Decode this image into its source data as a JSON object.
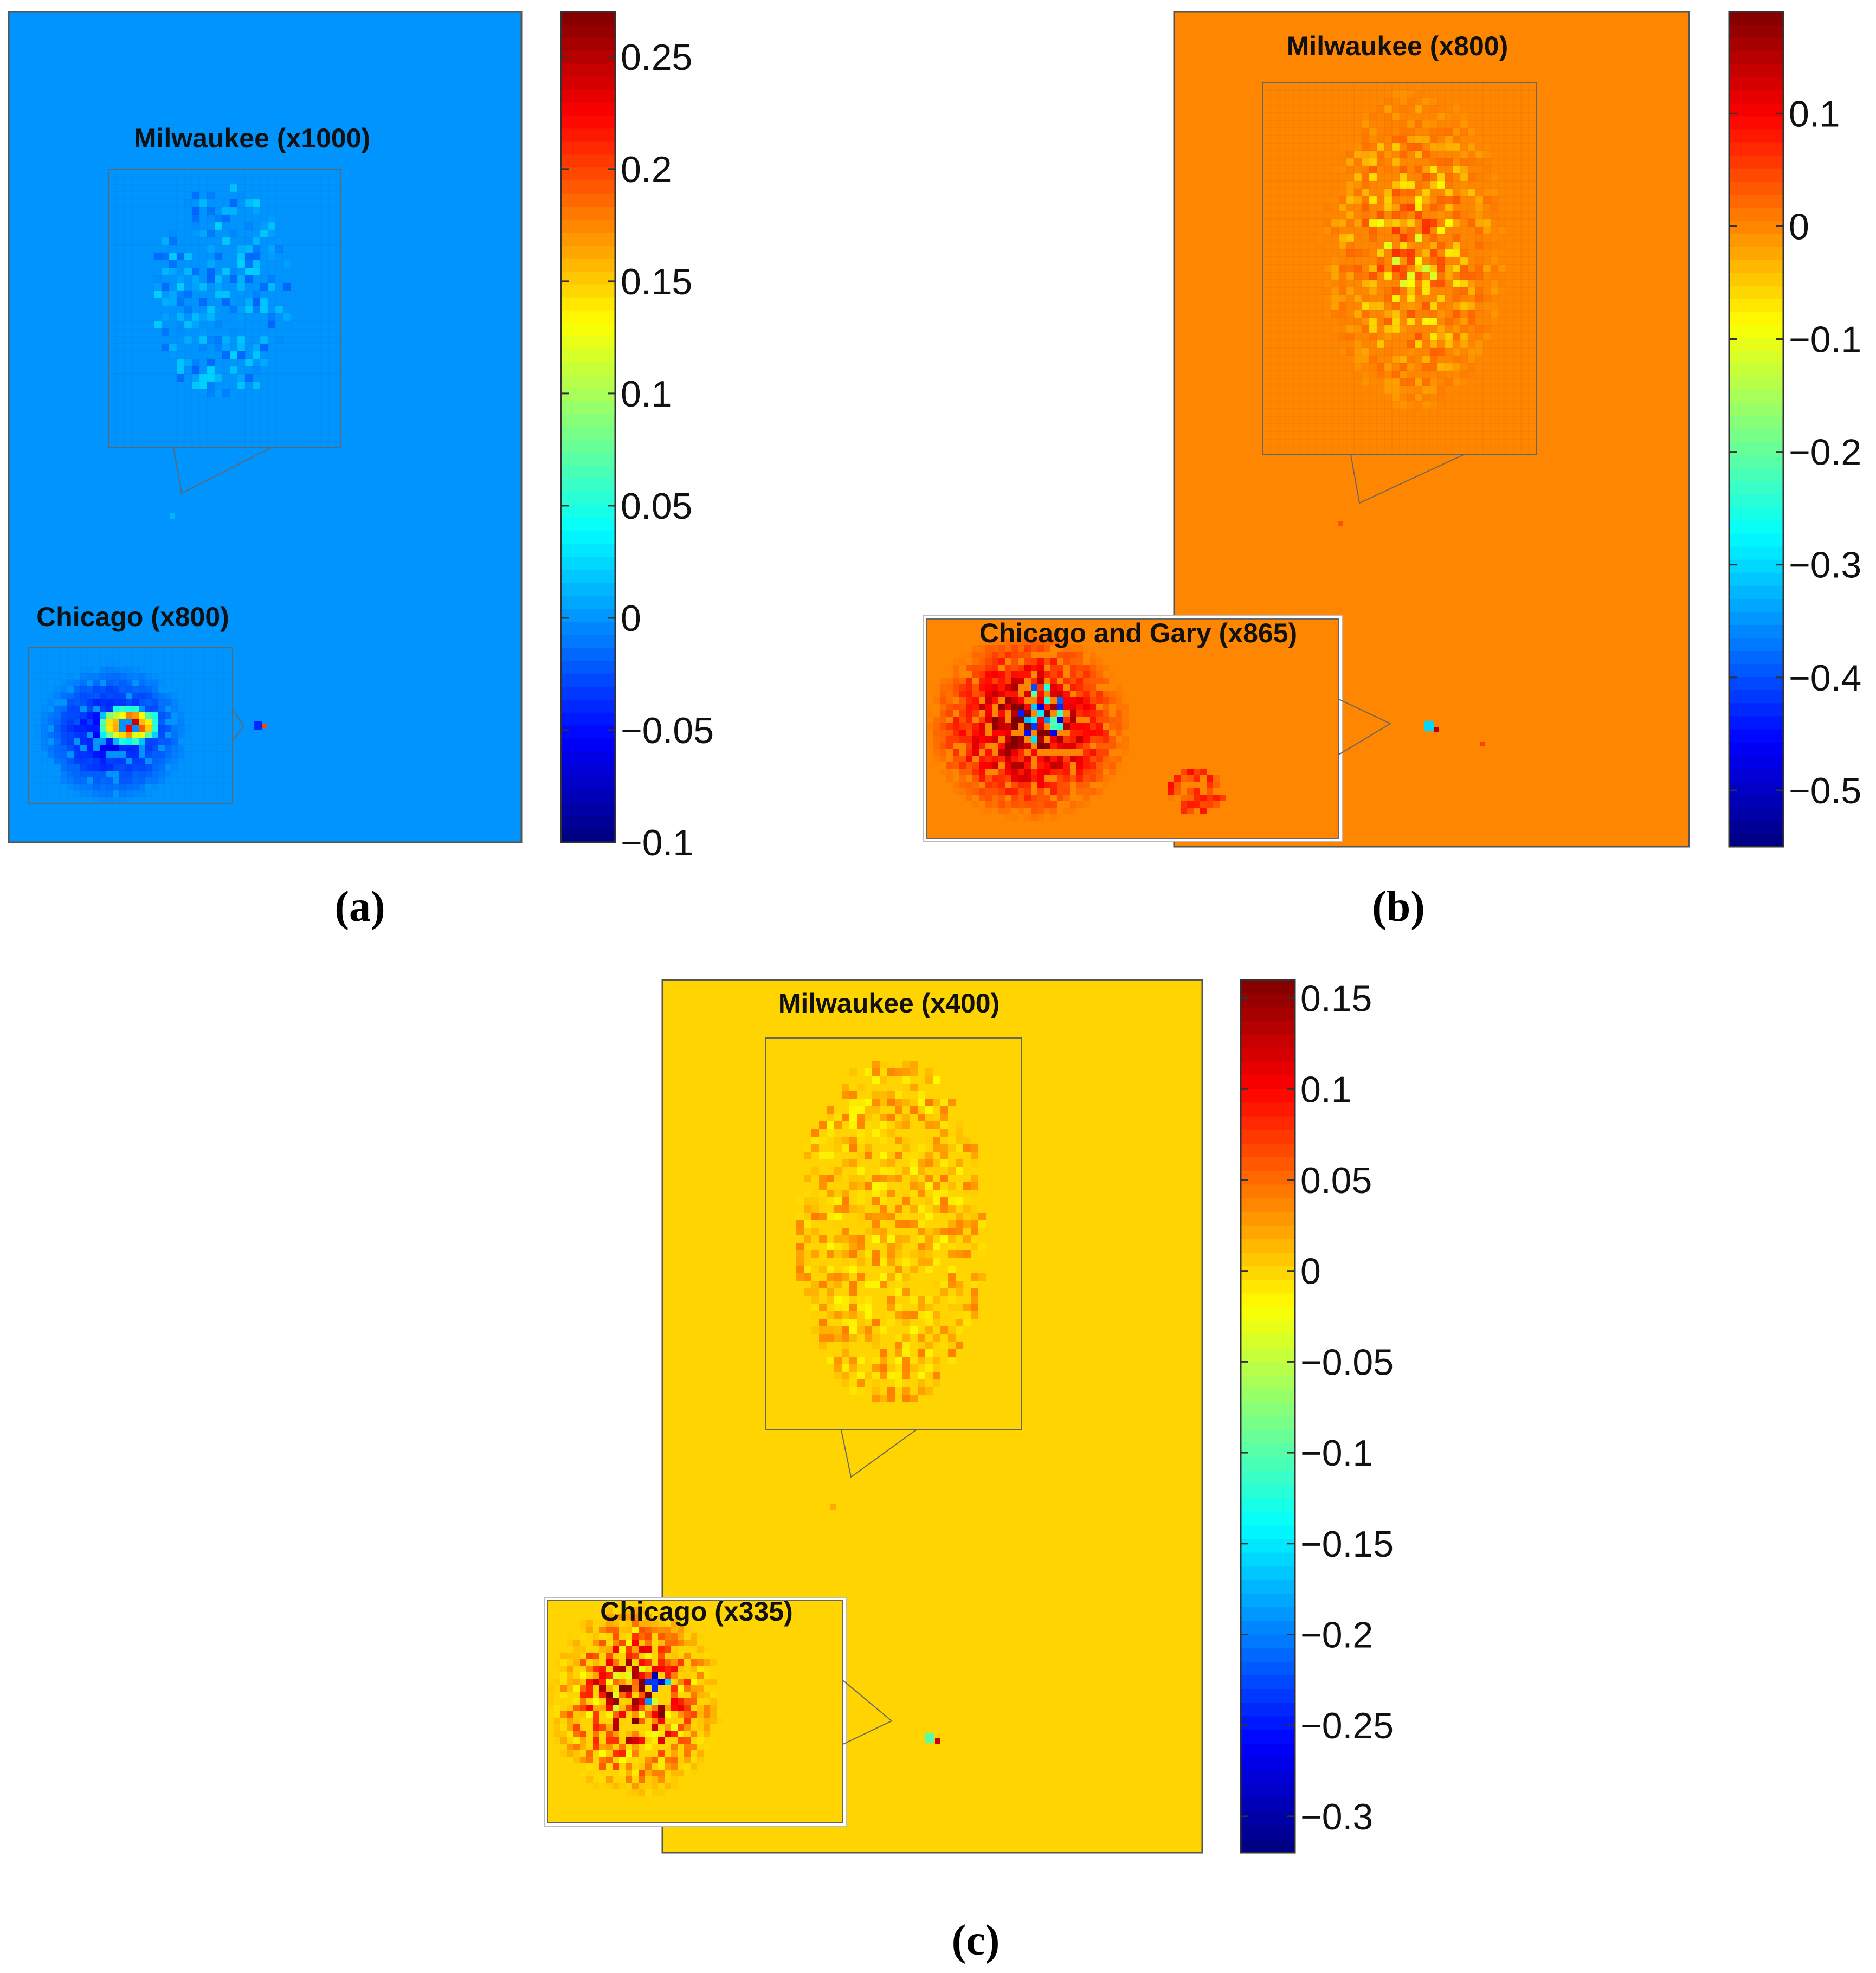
{
  "figure": {
    "panel_labels": [
      "(a)",
      "(b)",
      "(c)"
    ]
  },
  "colors": {
    "colormap": "jet",
    "map_border": "#555555",
    "inset_border": "#666666"
  },
  "chart_data": [
    {
      "panel": "(a)",
      "type": "heatmap",
      "colormap": "jet",
      "background_value": 0,
      "clim": [
        -0.1,
        0.27
      ],
      "colorbar_ticks": [
        -0.1,
        -0.05,
        0,
        0.05,
        0.1,
        0.15,
        0.2,
        0.25
      ],
      "colorbar_tick_labels": [
        "−0.1",
        "−0.05",
        "0",
        "0.05",
        "0.1",
        "0.15",
        "0.2",
        "0.25"
      ],
      "insets": [
        {
          "label": "Milwaukee (x1000)",
          "magnification": 1000,
          "min_value": -0.03,
          "max_value": 0.03
        },
        {
          "label": "Chicago (x800)",
          "magnification": 800,
          "min_value": -0.08,
          "max_value": 0.27
        }
      ]
    },
    {
      "panel": "(b)",
      "type": "heatmap",
      "colormap": "jet",
      "background_value": 0,
      "clim": [
        -0.55,
        0.19
      ],
      "colorbar_ticks": [
        -0.5,
        -0.4,
        -0.3,
        -0.2,
        -0.1,
        0,
        0.1
      ],
      "colorbar_tick_labels": [
        "−0.5",
        "−0.4",
        "−0.3",
        "−0.2",
        "−0.1",
        "0",
        "0.1"
      ],
      "insets": [
        {
          "label": "Milwaukee (x800)",
          "magnification": 800,
          "min_value": -0.08,
          "max_value": 0.04
        },
        {
          "label": "Chicago and Gary (x865)",
          "magnification": 865,
          "min_value": -0.5,
          "max_value": 0.19
        }
      ]
    },
    {
      "panel": "(c)",
      "type": "heatmap",
      "colormap": "jet",
      "background_value": 0,
      "clim": [
        -0.32,
        0.16
      ],
      "colorbar_ticks": [
        -0.3,
        -0.25,
        -0.2,
        -0.15,
        -0.1,
        -0.05,
        0,
        0.05,
        0.1,
        0.15
      ],
      "colorbar_tick_labels": [
        "−0.3",
        "−0.25",
        "−0.2",
        "−0.15",
        "−0.1",
        "−0.05",
        "0",
        "0.05",
        "0.1",
        "0.15"
      ],
      "insets": [
        {
          "label": "Milwaukee (x400)",
          "magnification": 400,
          "min_value": -0.03,
          "max_value": 0.04
        },
        {
          "label": "Chicago (x335)",
          "magnification": 335,
          "min_value": -0.3,
          "max_value": 0.15
        }
      ]
    }
  ]
}
